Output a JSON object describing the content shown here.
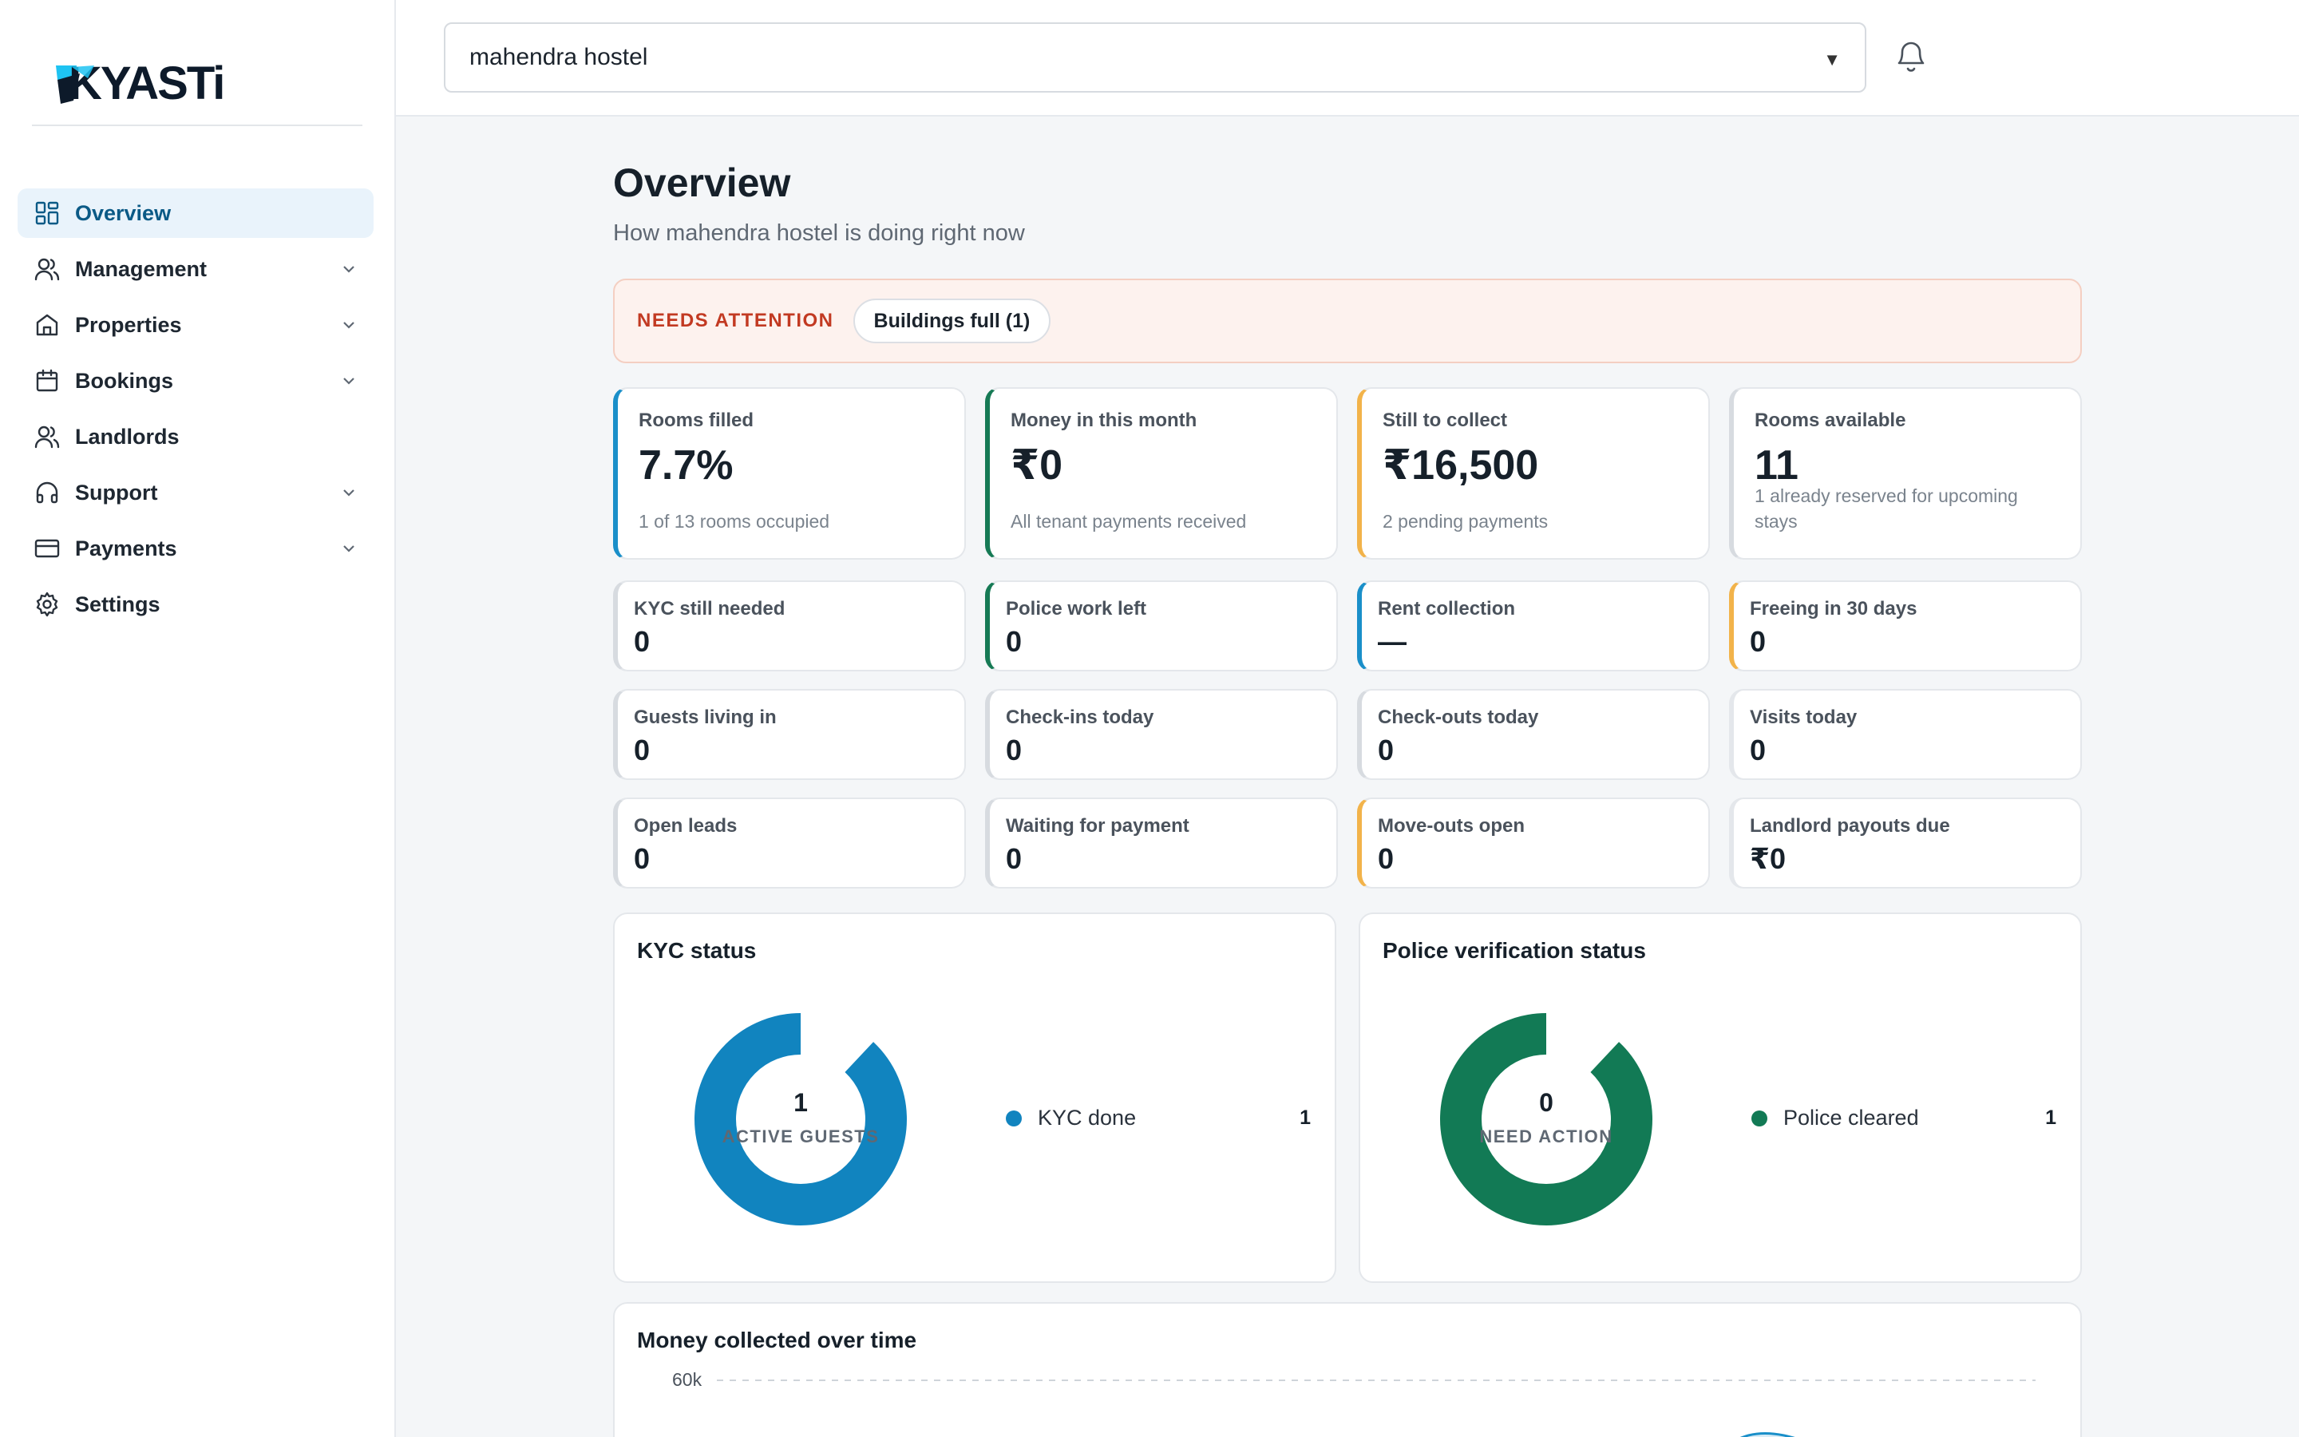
{
  "sidebar": {
    "logo_text": "KYASTi",
    "items": [
      {
        "label": "Overview",
        "icon": "grid-icon",
        "active": true,
        "expandable": false
      },
      {
        "label": "Management",
        "icon": "users-icon",
        "active": false,
        "expandable": true
      },
      {
        "label": "Properties",
        "icon": "home-icon",
        "active": false,
        "expandable": true
      },
      {
        "label": "Bookings",
        "icon": "calendar-icon",
        "active": false,
        "expandable": true
      },
      {
        "label": "Landlords",
        "icon": "users-icon",
        "active": false,
        "expandable": false
      },
      {
        "label": "Support",
        "icon": "headphones-icon",
        "active": false,
        "expandable": true
      },
      {
        "label": "Payments",
        "icon": "card-icon",
        "active": false,
        "expandable": true
      },
      {
        "label": "Settings",
        "icon": "gear-icon",
        "active": false,
        "expandable": false
      }
    ]
  },
  "topbar": {
    "property_value": "mahendra hostel",
    "caret": "▼"
  },
  "main": {
    "title": "Overview",
    "subtitle": "How mahendra hostel is doing right now",
    "attention": {
      "label": "NEEDS ATTENTION",
      "chip": "Buildings full (1)"
    },
    "big_cards": [
      {
        "label": "Rooms filled",
        "value": "7.7%",
        "sub": "1 of 13 rooms occupied",
        "accent": "#1a8fc9"
      },
      {
        "label": "Money in this month",
        "value": "₹0",
        "sub": "All tenant payments received",
        "accent": "#167a55"
      },
      {
        "label": "Still to collect",
        "value": "₹16,500",
        "sub": "2 pending payments",
        "accent": "#f2b34a"
      },
      {
        "label": "Rooms available",
        "value": "11",
        "sub": "1 already reserved for upcoming stays",
        "accent": "#d7dbe0"
      }
    ],
    "small_cards": [
      {
        "label": "KYC still needed",
        "value": "0",
        "accent": "#d7dbe0"
      },
      {
        "label": "Police work left",
        "value": "0",
        "accent": "#167a55"
      },
      {
        "label": "Rent collection",
        "value": "—",
        "accent": "#1a8fc9"
      },
      {
        "label": "Freeing in 30 days",
        "value": "0",
        "accent": "#f2b34a"
      },
      {
        "label": "Guests living in",
        "value": "0",
        "accent": "#d7dbe0"
      },
      {
        "label": "Check-ins today",
        "value": "0",
        "accent": "#d7dbe0"
      },
      {
        "label": "Check-outs today",
        "value": "0",
        "accent": "#d7dbe0"
      },
      {
        "label": "Visits today",
        "value": "0",
        "accent": "#e4e7eb"
      },
      {
        "label": "Open leads",
        "value": "0",
        "accent": "#d7dbe0"
      },
      {
        "label": "Waiting for payment",
        "value": "0",
        "accent": "#d7dbe0"
      },
      {
        "label": "Move-outs open",
        "value": "0",
        "accent": "#f2b34a"
      },
      {
        "label": "Landlord payouts due",
        "value": "₹0",
        "accent": "#e4e7eb"
      }
    ],
    "kyc": {
      "title": "KYC status",
      "center_value": "1",
      "center_caption": "ACTIVE GUESTS",
      "legend": [
        {
          "name": "KYC done",
          "value": "1",
          "color": "#1184bf"
        }
      ],
      "filled_fraction": 0.88
    },
    "police": {
      "title": "Police verification status",
      "center_value": "0",
      "center_caption": "NEED ACTION",
      "legend": [
        {
          "name": "Police cleared",
          "value": "1",
          "color": "#127a55"
        }
      ],
      "filled_fraction": 0.88
    },
    "money": {
      "title": "Money collected over time",
      "tick": "60k"
    }
  }
}
